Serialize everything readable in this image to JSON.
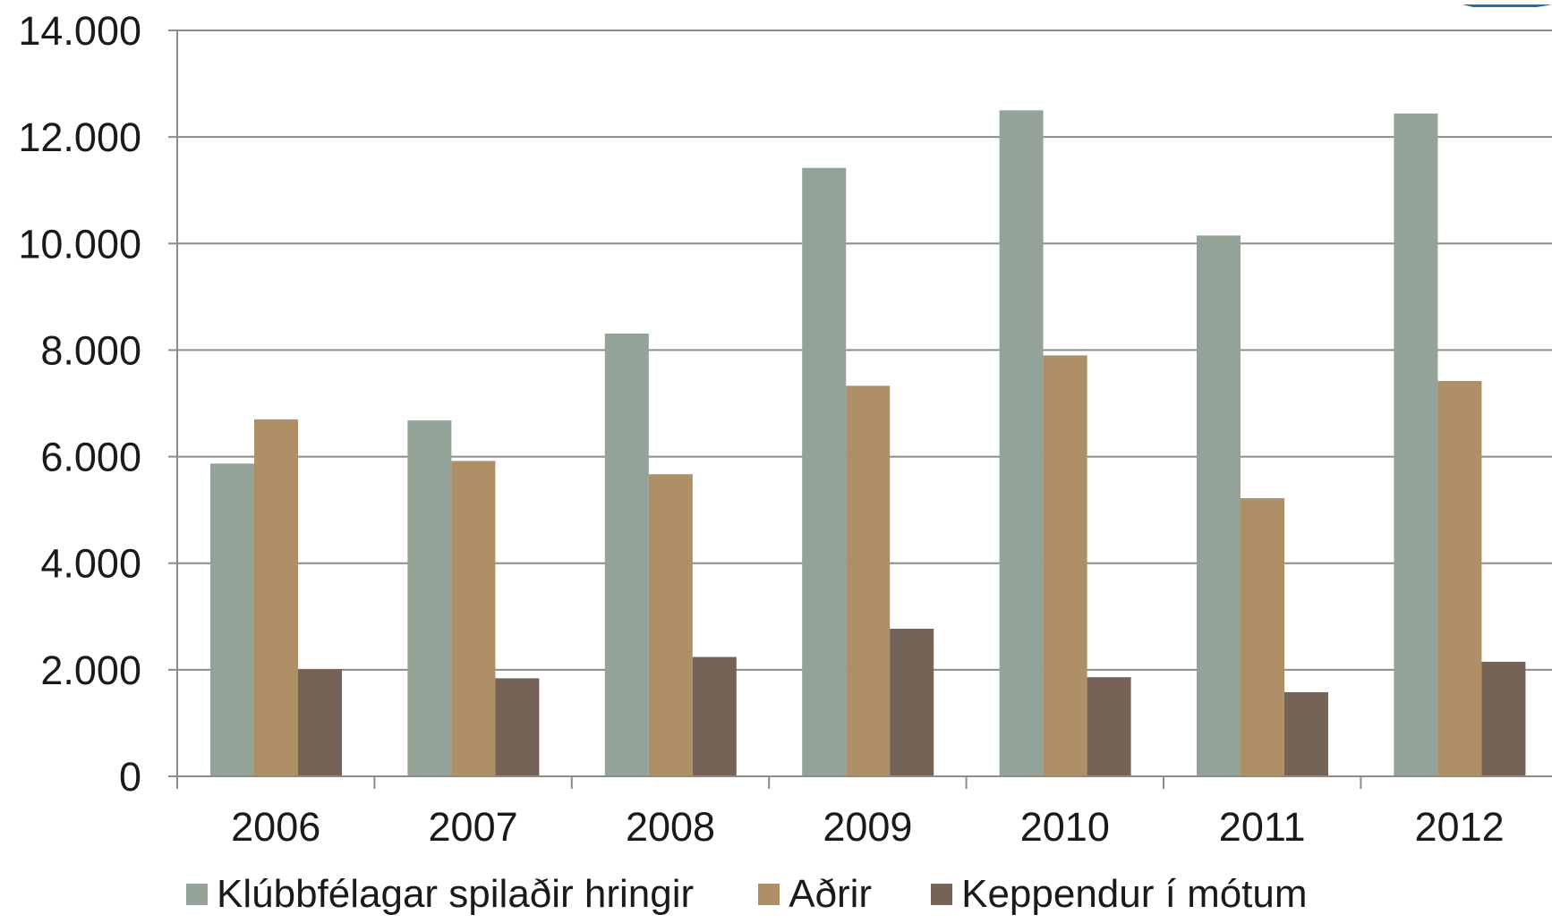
{
  "chart_data": {
    "type": "bar",
    "categories": [
      "2006",
      "2007",
      "2008",
      "2009",
      "2010",
      "2011",
      "2012"
    ],
    "series": [
      {
        "name": "Klúbbfélagar spilaðir hringir",
        "color": "#93a398",
        "values": [
          5870,
          6680,
          8310,
          11420,
          12500,
          10150,
          12440
        ]
      },
      {
        "name": "Aðrir",
        "color": "#ae8f66",
        "values": [
          6700,
          5920,
          5670,
          7330,
          7900,
          5220,
          7420
        ]
      },
      {
        "name": "Keppendur í mótum",
        "color": "#766357",
        "values": [
          2010,
          1840,
          2240,
          2770,
          1860,
          1580,
          2150
        ]
      }
    ],
    "y_ticks": [
      "0",
      "2.000",
      "4.000",
      "6.000",
      "8.000",
      "10.000",
      "12.000",
      "14.000"
    ],
    "ylim": [
      0,
      14000
    ],
    "grid": true,
    "legend_position": "bottom",
    "title": "",
    "xlabel": "",
    "ylabel": ""
  },
  "colors": {
    "gridline": "#8c8c8c",
    "axis": "#8c8c8c",
    "logo_accent": "#1f6fb3"
  }
}
